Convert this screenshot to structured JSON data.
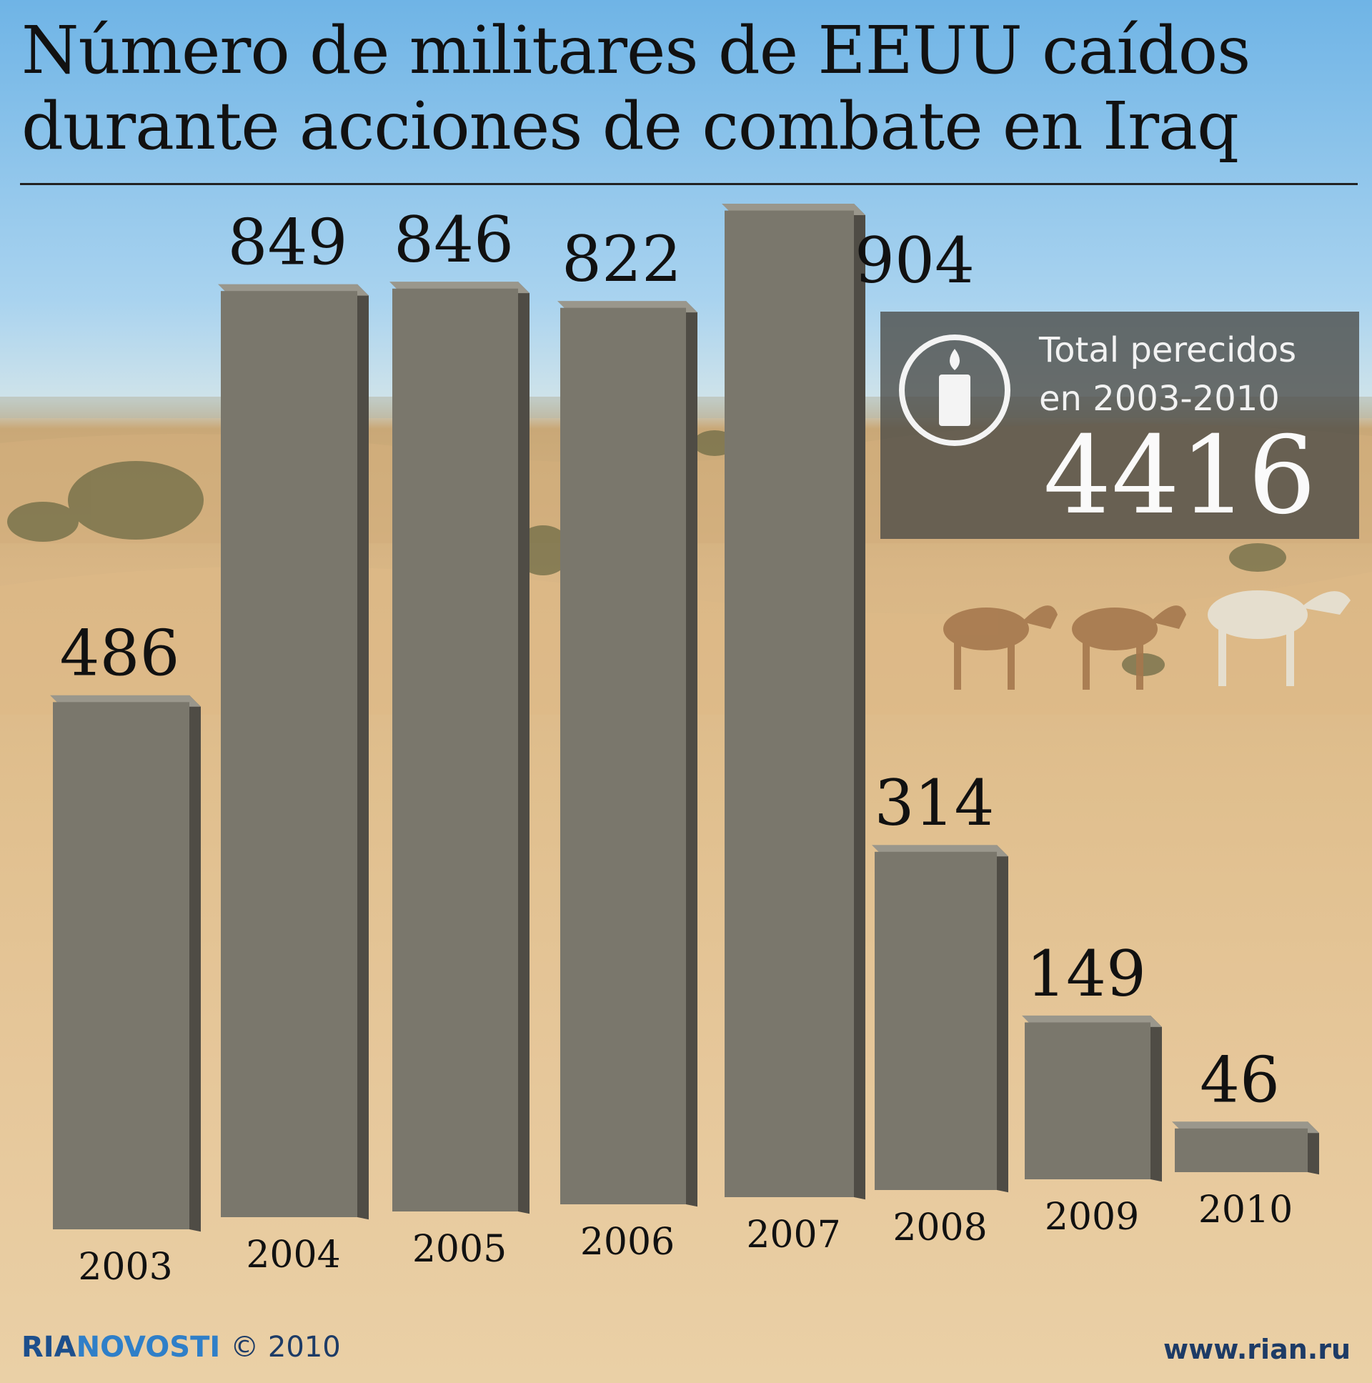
{
  "header": {
    "title_line1": "Número de militares de EEUU caídos",
    "title_line2": "durante acciones de combate en Iraq"
  },
  "chart_data": {
    "type": "bar",
    "title": "Número de militares de EEUU caídos durante acciones de combate en Iraq",
    "categories": [
      "2003",
      "2004",
      "2005",
      "2006",
      "2007",
      "2008",
      "2009",
      "2010"
    ],
    "values": [
      486,
      849,
      846,
      822,
      904,
      314,
      149,
      46
    ],
    "xlabel": "",
    "ylabel": "",
    "grid": false,
    "bar_color": "#7a776c"
  },
  "total_box": {
    "icon": "candle-icon",
    "label_line1": "Total perecidos",
    "label_line2": "en 2003-2010",
    "value": "4416"
  },
  "footer": {
    "brand_ria": "RIA",
    "brand_novosti": "NOVOSTI",
    "copyright": "© 2010",
    "website": "www.rian.ru"
  }
}
